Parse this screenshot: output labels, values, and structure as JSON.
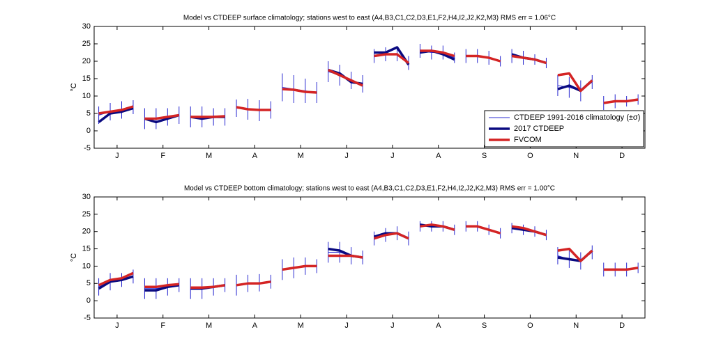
{
  "chart_data": [
    {
      "type": "line",
      "title": "Model vs CTDEEP surface climatology; stations west to east (A4,B3,C1,C2,D3,E1,F2,H4,I2,J2,K2,M3) RMS err = 1.06°C",
      "ylabel": "°C",
      "xlim": [
        0,
        12
      ],
      "xticks": [
        {
          "value": 0.5,
          "label": "J"
        },
        {
          "value": 1.5,
          "label": "F"
        },
        {
          "value": 2.5,
          "label": "M"
        },
        {
          "value": 3.5,
          "label": "A"
        },
        {
          "value": 4.5,
          "label": "M"
        },
        {
          "value": 5.5,
          "label": "J"
        },
        {
          "value": 6.5,
          "label": "J"
        },
        {
          "value": 7.5,
          "label": "A"
        },
        {
          "value": 8.5,
          "label": "S"
        },
        {
          "value": 9.5,
          "label": "O"
        },
        {
          "value": 10.5,
          "label": "N"
        },
        {
          "value": 11.5,
          "label": "D"
        }
      ],
      "ylim": [
        -5,
        30
      ],
      "yticks": [
        -5,
        0,
        5,
        10,
        15,
        20,
        25,
        30
      ],
      "legend": "lower right",
      "x": [
        0.1,
        0.35,
        0.6,
        0.85,
        0.95,
        1.1,
        1.35,
        1.6,
        1.85,
        1.95,
        2.1,
        2.35,
        2.6,
        2.85,
        2.95,
        3.1,
        3.35,
        3.6,
        3.85,
        3.95,
        4.1,
        4.35,
        4.6,
        4.85,
        4.95,
        5.1,
        5.35,
        5.6,
        5.85,
        5.95,
        6.1,
        6.35,
        6.6,
        6.85,
        6.95,
        7.1,
        7.35,
        7.6,
        7.85,
        7.95,
        8.1,
        8.35,
        8.6,
        8.85,
        8.95,
        9.1,
        9.35,
        9.6,
        9.85,
        9.95,
        10.1,
        10.35,
        10.6,
        10.85,
        10.95,
        11.1,
        11.35,
        11.6,
        11.85
      ],
      "series": [
        {
          "name": "CTDEEP 1991-2016 climatology (±σ)",
          "color": "#2b2bd0",
          "linewidth": 1,
          "values": [
            4.5,
            5.5,
            6,
            6.8,
            null,
            3.5,
            3.5,
            4,
            4.5,
            null,
            4,
            4,
            4,
            4,
            null,
            6.5,
            6.2,
            5.8,
            6,
            null,
            12.5,
            12,
            11.5,
            11,
            null,
            17,
            16,
            14.5,
            13.5,
            null,
            21.5,
            22,
            22,
            19.5,
            null,
            23,
            22.5,
            22.5,
            21,
            null,
            21.5,
            21.5,
            21,
            20,
            null,
            21.5,
            21,
            20.5,
            19.5,
            null,
            13,
            12.5,
            11.5,
            14,
            null,
            8,
            8.5,
            8.5,
            9
          ],
          "errors": [
            2.5,
            2.5,
            2.5,
            2,
            null,
            3,
            3,
            2.5,
            2.5,
            null,
            3,
            3,
            2.5,
            2.5,
            null,
            2.5,
            3,
            3,
            2.5,
            null,
            4,
            4,
            3.5,
            3,
            null,
            3,
            3,
            2.5,
            2.5,
            null,
            2,
            2,
            2,
            2,
            null,
            2,
            2,
            2,
            1.5,
            null,
            2,
            2,
            2,
            1.5,
            null,
            2,
            2,
            1.5,
            1.5,
            null,
            3,
            3,
            3,
            2,
            null,
            2,
            2,
            1.5,
            1.5
          ]
        },
        {
          "name": "2017 CTDEEP",
          "color": "#0a0a80",
          "linewidth": 3.5,
          "values": [
            2.5,
            5,
            5.5,
            6.5,
            null,
            3.5,
            2.5,
            3.5,
            4.5,
            null,
            4,
            3.5,
            4,
            4,
            null,
            null,
            null,
            null,
            null,
            null,
            null,
            null,
            null,
            null,
            null,
            17.5,
            16.5,
            14,
            13.5,
            null,
            22.5,
            22.5,
            24,
            19,
            null,
            22.5,
            23,
            22,
            20.5,
            null,
            null,
            null,
            null,
            null,
            null,
            22,
            21,
            20.5,
            19.5,
            null,
            12,
            13,
            11.5,
            14.5,
            null,
            null,
            null,
            null,
            null
          ]
        },
        {
          "name": "FVCOM",
          "color": "#d42424",
          "linewidth": 3.5,
          "values": [
            5,
            5.5,
            6,
            7,
            null,
            3.5,
            3.5,
            4,
            4.5,
            null,
            4,
            4,
            4,
            4.2,
            null,
            6.8,
            6.2,
            6,
            6,
            null,
            12,
            11.8,
            11.2,
            11,
            null,
            17.5,
            16,
            14.5,
            13,
            null,
            21.5,
            22,
            22,
            19.5,
            null,
            23,
            23,
            22.5,
            21.5,
            null,
            21.5,
            21.5,
            21,
            20,
            null,
            21.5,
            21,
            20.5,
            19.5,
            null,
            16,
            16.5,
            11.5,
            14.5,
            null,
            8,
            8.5,
            8.5,
            9
          ]
        }
      ]
    },
    {
      "type": "line",
      "title": "Model vs CTDEEP bottom climatology; stations west to east (A4,B3,C1,C2,D3,E1,F2,H4,I2,J2,K2,M3) RMS err = 1.00°C",
      "ylabel": "°C",
      "xlim": [
        0,
        12
      ],
      "xticks": [
        {
          "value": 0.5,
          "label": "J"
        },
        {
          "value": 1.5,
          "label": "F"
        },
        {
          "value": 2.5,
          "label": "M"
        },
        {
          "value": 3.5,
          "label": "A"
        },
        {
          "value": 4.5,
          "label": "M"
        },
        {
          "value": 5.5,
          "label": "J"
        },
        {
          "value": 6.5,
          "label": "J"
        },
        {
          "value": 7.5,
          "label": "A"
        },
        {
          "value": 8.5,
          "label": "S"
        },
        {
          "value": 9.5,
          "label": "O"
        },
        {
          "value": 10.5,
          "label": "N"
        },
        {
          "value": 11.5,
          "label": "D"
        }
      ],
      "ylim": [
        -5,
        30
      ],
      "yticks": [
        -5,
        0,
        5,
        10,
        15,
        20,
        25,
        30
      ],
      "x": [
        0.1,
        0.35,
        0.6,
        0.85,
        0.95,
        1.1,
        1.35,
        1.6,
        1.85,
        1.95,
        2.1,
        2.35,
        2.6,
        2.85,
        2.95,
        3.1,
        3.35,
        3.6,
        3.85,
        3.95,
        4.1,
        4.35,
        4.6,
        4.85,
        4.95,
        5.1,
        5.35,
        5.6,
        5.85,
        5.95,
        6.1,
        6.35,
        6.6,
        6.85,
        6.95,
        7.1,
        7.35,
        7.6,
        7.85,
        7.95,
        8.1,
        8.35,
        8.6,
        8.85,
        8.95,
        9.1,
        9.35,
        9.6,
        9.85,
        9.95,
        10.1,
        10.35,
        10.6,
        10.85,
        10.95,
        11.1,
        11.35,
        11.6,
        11.85
      ],
      "series": [
        {
          "name": "CTDEEP 1991-2016 climatology (±σ)",
          "color": "#2b2bd0",
          "linewidth": 1,
          "values": [
            4,
            5.5,
            6,
            7,
            null,
            3.5,
            3.5,
            4,
            4.5,
            null,
            3.5,
            3.5,
            4,
            4.5,
            null,
            4.5,
            5,
            5.2,
            5.5,
            null,
            9,
            9.5,
            10,
            10,
            null,
            14,
            14,
            13,
            12.5,
            null,
            18,
            19,
            19.5,
            18,
            null,
            21.5,
            21.5,
            21.5,
            20.5,
            null,
            21.5,
            21.5,
            20.5,
            19.5,
            null,
            21,
            20.5,
            20,
            19,
            null,
            13,
            12,
            11.5,
            14,
            null,
            9,
            9,
            9,
            9.5
          ],
          "errors": [
            2.5,
            2.5,
            2,
            2,
            null,
            3,
            3,
            2.5,
            2,
            null,
            3,
            3,
            2.5,
            2,
            null,
            3,
            2.5,
            2.5,
            2,
            null,
            3,
            3,
            2.5,
            2,
            null,
            3,
            3,
            2.5,
            2,
            null,
            2,
            2,
            2,
            2,
            null,
            1.5,
            1.5,
            1.5,
            1.5,
            null,
            1.5,
            1.5,
            1.5,
            1.5,
            null,
            1.5,
            1.5,
            1.5,
            1.5,
            null,
            2.5,
            2.5,
            2.5,
            2,
            null,
            2,
            2,
            2,
            1.5
          ]
        },
        {
          "name": "2017 CTDEEP",
          "color": "#0a0a80",
          "linewidth": 3.5,
          "values": [
            3.5,
            5.5,
            6,
            7,
            null,
            3,
            3,
            4,
            4.5,
            null,
            3.5,
            3.5,
            4,
            4.5,
            null,
            null,
            null,
            null,
            null,
            null,
            null,
            null,
            null,
            null,
            null,
            15,
            14.5,
            13,
            12.5,
            null,
            18.5,
            19.5,
            19.5,
            18,
            null,
            22,
            21.5,
            21.5,
            20.5,
            null,
            null,
            null,
            null,
            null,
            null,
            21,
            20.5,
            20,
            19,
            null,
            12.5,
            12,
            11.5,
            14.5,
            null,
            null,
            null,
            null,
            null
          ]
        },
        {
          "name": "FVCOM",
          "color": "#d42424",
          "linewidth": 3.5,
          "values": [
            4.5,
            6,
            6.5,
            8,
            null,
            4,
            4,
            4.5,
            4.8,
            null,
            3.8,
            3.8,
            4,
            4.5,
            null,
            4.5,
            5,
            5,
            5.5,
            null,
            9,
            9.5,
            10,
            10,
            null,
            13,
            13,
            13,
            12.5,
            null,
            18,
            19,
            19.5,
            18,
            null,
            21.5,
            22,
            21.5,
            20.5,
            null,
            21.5,
            21.5,
            20.5,
            19.5,
            null,
            21.5,
            21,
            20,
            19,
            null,
            14.5,
            15,
            11.5,
            14.5,
            null,
            9,
            9,
            9,
            9.5
          ]
        }
      ]
    }
  ]
}
